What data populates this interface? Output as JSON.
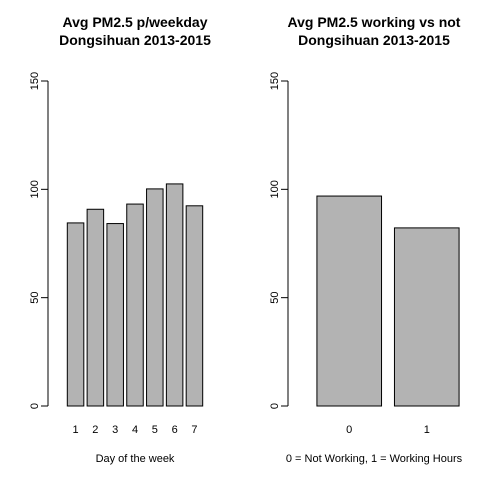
{
  "chart_data": [
    {
      "type": "bar",
      "title": "Avg PM2.5 p/weekday",
      "subtitle": "Dongsihuan 2013-2015",
      "xlabel": "Day of the week",
      "ylabel": "",
      "categories": [
        "1",
        "2",
        "3",
        "4",
        "5",
        "6",
        "7"
      ],
      "values": [
        84.5,
        90.8,
        84.2,
        93.2,
        100.2,
        102.5,
        92.4
      ],
      "ylim": [
        0,
        150
      ],
      "yticks": [
        "0",
        "50",
        "100",
        "150"
      ],
      "grid": false,
      "bar_color": "#b3b3b3"
    },
    {
      "type": "bar",
      "title": "Avg PM2.5 working vs not",
      "subtitle": "Dongsihuan 2013-2015",
      "xlabel": "0 = Not Working, 1 = Working Hours",
      "ylabel": "",
      "categories": [
        "0",
        "1"
      ],
      "values": [
        96.9,
        82.2
      ],
      "ylim": [
        0,
        150
      ],
      "yticks": [
        "0",
        "50",
        "100",
        "150"
      ],
      "grid": false,
      "bar_color": "#b3b3b3"
    }
  ]
}
